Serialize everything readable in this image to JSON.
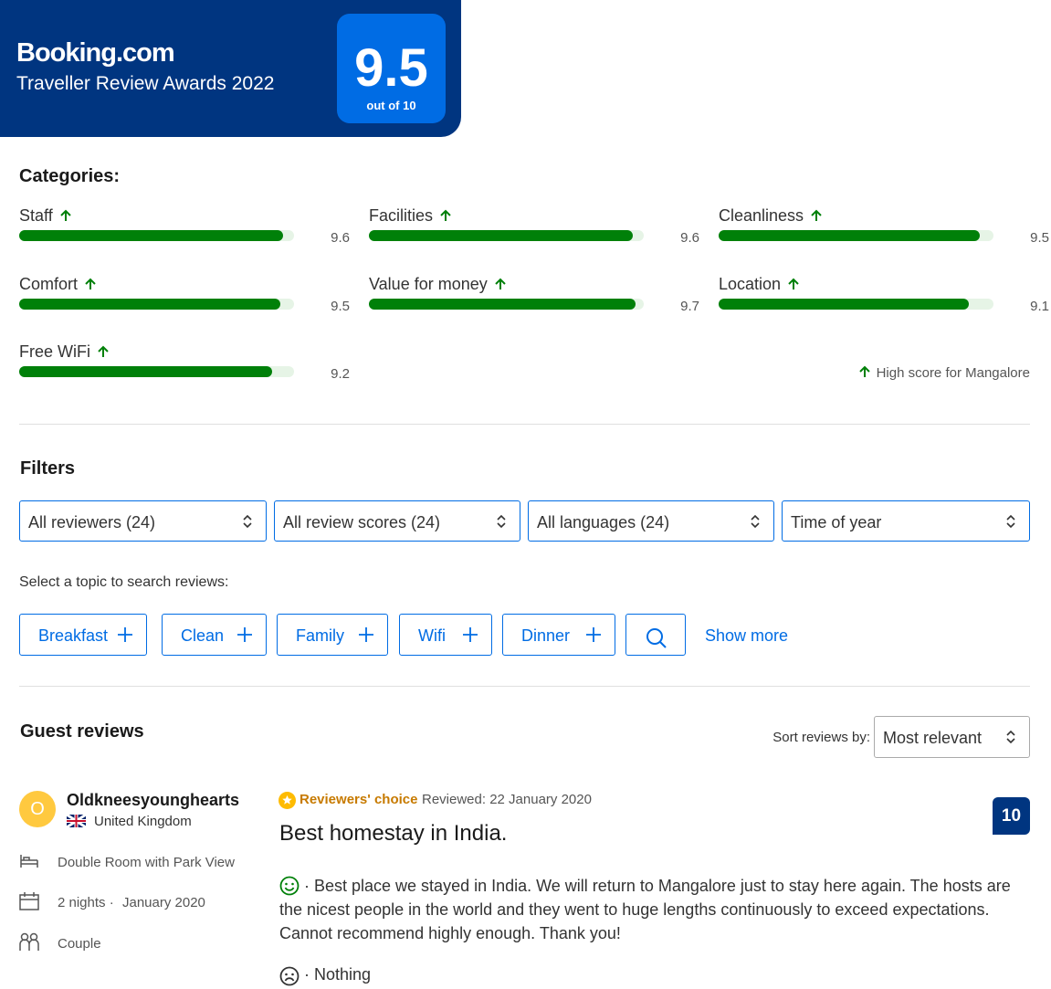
{
  "badge": {
    "brand": "Booking.com",
    "award": "Traveller Review Awards 2022",
    "score": 9.5,
    "scale": {
      "value": 10,
      "label": "out of 10"
    }
  },
  "categories": {
    "title": "Categories:",
    "items": [
      {
        "name": "Staff",
        "score": 9.6
      },
      {
        "name": "Facilities",
        "score": 9.6
      },
      {
        "name": "Cleanliness",
        "score": 9.5
      },
      {
        "name": "Comfort",
        "score": 9.5
      },
      {
        "name": "Value for money",
        "score": 9.7
      },
      {
        "name": "Location",
        "score": 9.1
      },
      {
        "name": "Free WiFi",
        "score": 9.2
      }
    ],
    "note": "High score for Mangalore"
  },
  "filters": {
    "title": "Filters",
    "selects": [
      "All reviewers (24)",
      "All review scores (24)",
      "All languages (24)",
      "Time of year"
    ],
    "topic_prompt": "Select a topic to search reviews:",
    "topics": [
      "Breakfast",
      "Clean",
      "Family",
      "Wifi",
      "Dinner"
    ],
    "show_more": "Show more"
  },
  "reviews": {
    "title": "Guest reviews",
    "sort_label": "Sort reviews by:",
    "sort_value": "Most relevant",
    "items": [
      {
        "initial": "O",
        "name": "Oldkneesyounghearts",
        "country": "United Kingdom",
        "room": "Double Room with Park View",
        "stay": "2 nights ·",
        "date": "January 2020",
        "traveller": "Couple",
        "badge": "Reviewers' choice",
        "reviewed": "Reviewed: 22 January 2020",
        "title": "Best homestay in India.",
        "score": 10,
        "positive": "· Best place we stayed in India. We will return to Mangalore just to stay here again. The hosts are the nicest people in the world and they went to huge lengths continuously to exceed expectations. Cannot recommend highly enough. Thank you!",
        "negative": "· Nothing"
      }
    ]
  }
}
